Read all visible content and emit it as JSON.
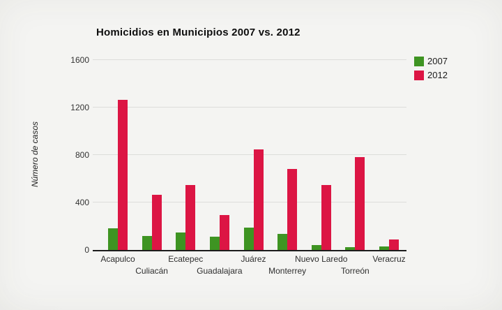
{
  "colors": {
    "background": "#f2f2f0",
    "gridline": "#dcddda",
    "axis": "#1c1c1c",
    "text": "#2e2e2e",
    "series_2007": "#3e9422",
    "series_2012": "#dc1544"
  },
  "chart_data": {
    "type": "bar",
    "title": "Homicidios en Municipios 2007 vs. 2012",
    "categories": [
      "Acapulco",
      "Culiacán",
      "Ecatepec",
      "Guadalajara",
      "Juárez",
      "Monterrey",
      "Nuevo Laredo",
      "Torreón",
      "Veracruz"
    ],
    "series": [
      {
        "name": "2007",
        "color": "#3e9422",
        "values": [
          180,
          120,
          150,
          110,
          190,
          135,
          40,
          25,
          30
        ]
      },
      {
        "name": "2012",
        "color": "#dc1544",
        "values": [
          1265,
          465,
          550,
          295,
          845,
          680,
          550,
          785,
          90
        ]
      }
    ],
    "xlabel": "",
    "ylabel": "Número de casos",
    "ylim": [
      0,
      1600
    ],
    "yticks": [
      0,
      400,
      800,
      1200,
      1600
    ],
    "grid": true,
    "legend_position": "top-right",
    "x_label_layout": "staggered-two-rows"
  }
}
